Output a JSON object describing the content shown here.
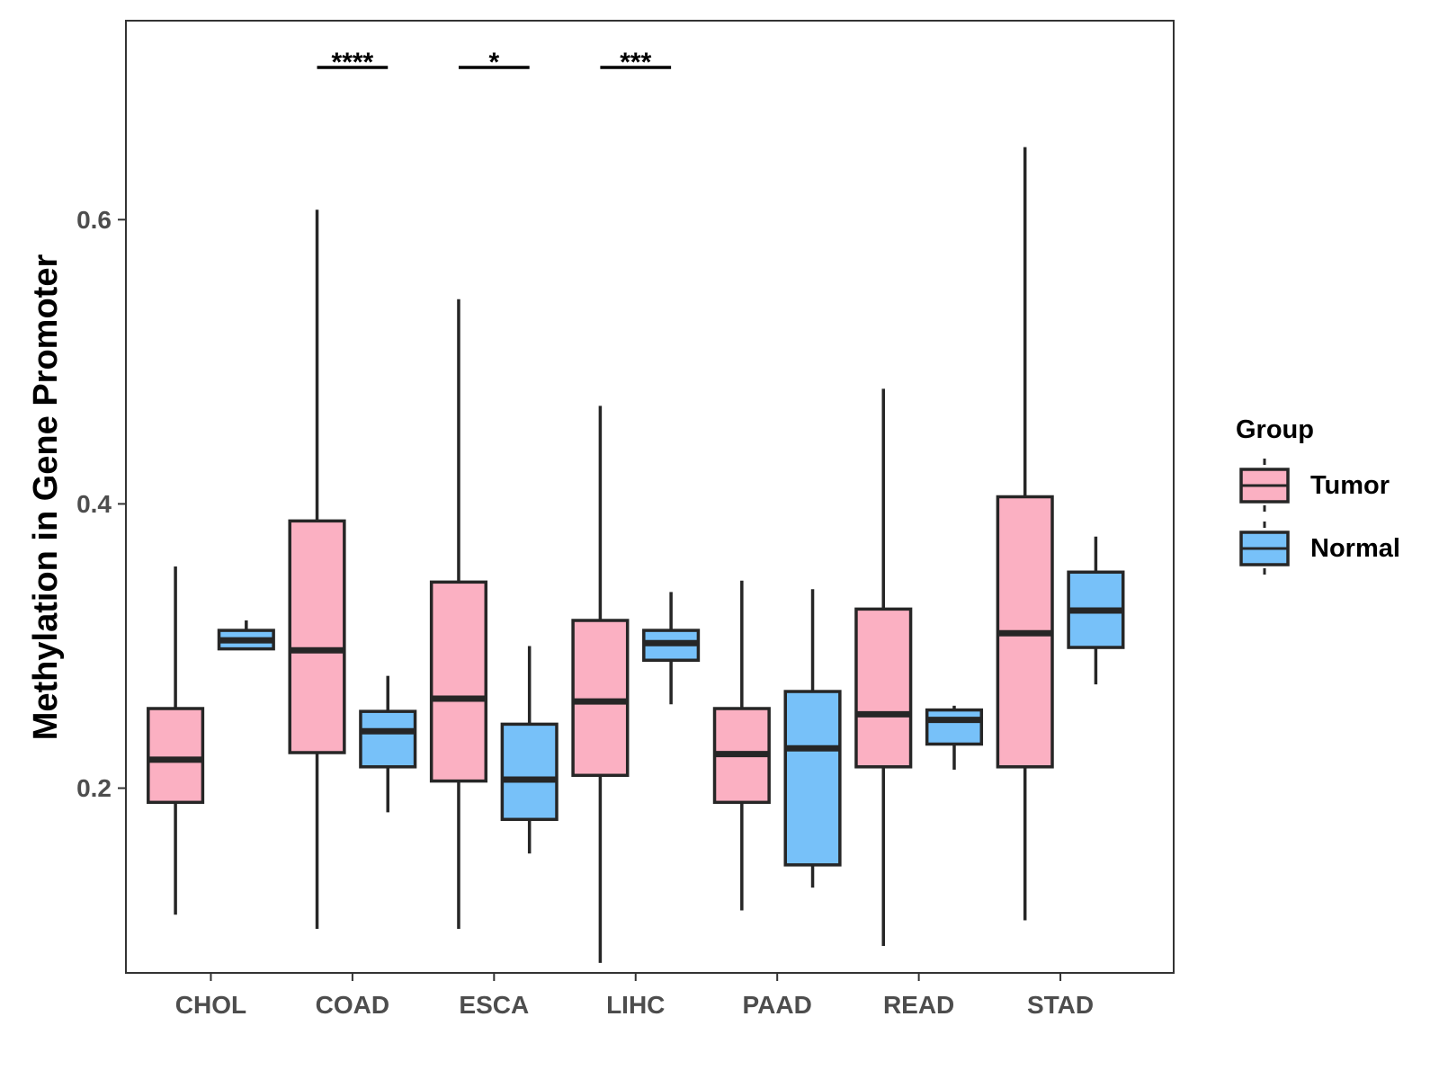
{
  "chart_data": {
    "type": "boxplot",
    "title": "",
    "xlabel": "",
    "ylabel": "Methylation in Gene Promoter",
    "ylim": [
      0.07,
      0.74
    ],
    "yticks": [
      0.2,
      0.4,
      0.6
    ],
    "ytick_labels": [
      "0.2",
      "0.4",
      "0.6"
    ],
    "categories": [
      "CHOL",
      "COAD",
      "ESCA",
      "LIHC",
      "PAAD",
      "READ",
      "STAD"
    ],
    "grid": false,
    "legend": {
      "title": "Group",
      "position": "right",
      "entries": [
        {
          "label": "Tumor",
          "color": "#FBB0C2"
        },
        {
          "label": "Normal",
          "color": "#77C1F9"
        }
      ]
    },
    "series": [
      {
        "name": "Tumor",
        "color": "#FBB0C2",
        "boxes": [
          {
            "min": 0.111,
            "q1": 0.19,
            "median": 0.22,
            "q3": 0.256,
            "max": 0.356
          },
          {
            "min": 0.101,
            "q1": 0.225,
            "median": 0.297,
            "q3": 0.388,
            "max": 0.607
          },
          {
            "min": 0.101,
            "q1": 0.205,
            "median": 0.263,
            "q3": 0.345,
            "max": 0.544
          },
          {
            "min": 0.077,
            "q1": 0.209,
            "median": 0.261,
            "q3": 0.318,
            "max": 0.469
          },
          {
            "min": 0.114,
            "q1": 0.19,
            "median": 0.224,
            "q3": 0.256,
            "max": 0.346
          },
          {
            "min": 0.089,
            "q1": 0.215,
            "median": 0.252,
            "q3": 0.326,
            "max": 0.481
          },
          {
            "min": 0.107,
            "q1": 0.215,
            "median": 0.309,
            "q3": 0.405,
            "max": 0.651
          }
        ]
      },
      {
        "name": "Normal",
        "color": "#77C1F9",
        "boxes": [
          {
            "min": 0.298,
            "q1": 0.298,
            "median": 0.304,
            "q3": 0.311,
            "max": 0.318
          },
          {
            "min": 0.183,
            "q1": 0.215,
            "median": 0.24,
            "q3": 0.254,
            "max": 0.279
          },
          {
            "min": 0.154,
            "q1": 0.178,
            "median": 0.206,
            "q3": 0.245,
            "max": 0.3
          },
          {
            "min": 0.259,
            "q1": 0.29,
            "median": 0.302,
            "q3": 0.311,
            "max": 0.338
          },
          {
            "min": 0.13,
            "q1": 0.146,
            "median": 0.228,
            "q3": 0.268,
            "max": 0.34
          },
          {
            "min": 0.213,
            "q1": 0.231,
            "median": 0.248,
            "q3": 0.255,
            "max": 0.258
          },
          {
            "min": 0.273,
            "q1": 0.299,
            "median": 0.325,
            "q3": 0.352,
            "max": 0.377
          }
        ]
      }
    ],
    "significance": [
      {
        "category": "COAD",
        "label": "****"
      },
      {
        "category": "ESCA",
        "label": "*"
      },
      {
        "category": "LIHC",
        "label": "***"
      }
    ]
  }
}
